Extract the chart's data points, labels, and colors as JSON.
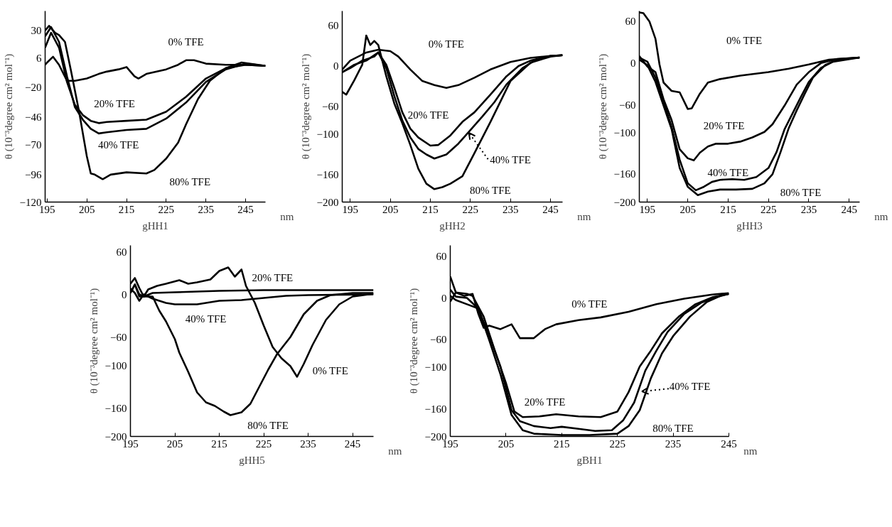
{
  "chart_data": [
    {
      "type": "line",
      "title": "gHH1",
      "xlabel": "nm",
      "ylabel": "θ (10⁻³degree cm² mol⁻¹)",
      "xlim": [
        194.5,
        250
      ],
      "ylim": [
        -120,
        47
      ],
      "xticks": [
        195,
        205,
        215,
        225,
        235,
        245
      ],
      "yticks": [
        -120,
        -96,
        -70,
        -46,
        -20,
        6,
        30
      ],
      "series": [
        {
          "name": "0% TFE",
          "color": "#000000",
          "x": [
            194.5,
            195,
            196.5,
            198,
            200,
            202,
            205,
            208,
            210,
            213,
            215,
            217,
            218,
            220,
            225,
            228,
            230,
            232,
            235,
            240,
            245,
            250
          ],
          "values": [
            0,
            2,
            7,
            0,
            -14,
            -14,
            -12,
            -8,
            -6,
            -4,
            -2,
            -10,
            -12,
            -8,
            -4,
            0,
            4,
            4,
            1,
            0,
            0,
            -1
          ]
        },
        {
          "name": "20% TFE",
          "color": "#000000",
          "x": [
            194.5,
            196,
            198,
            200,
            202,
            204,
            206,
            208,
            210,
            215,
            220,
            225,
            230,
            235,
            240,
            245,
            250
          ],
          "values": [
            15,
            28,
            15,
            -15,
            -35,
            -44,
            -49,
            -51,
            -50,
            -49,
            -48,
            -41,
            -28,
            -12,
            -3,
            0,
            -1
          ]
        },
        {
          "name": "40% TFE",
          "color": "#000000",
          "x": [
            194.5,
            196,
            198,
            200,
            202,
            204,
            206,
            208,
            210,
            215,
            220,
            225,
            230,
            235,
            240,
            245,
            250
          ],
          "values": [
            25,
            33,
            20,
            -10,
            -37,
            -48,
            -56,
            -60,
            -59,
            -57,
            -56,
            -47,
            -33,
            -15,
            -4,
            1,
            -1
          ]
        },
        {
          "name": "80% TFE",
          "color": "#000000",
          "x": [
            194.5,
            195.5,
            197,
            198,
            199.5,
            201,
            203,
            205,
            206,
            207,
            209,
            211,
            215,
            220,
            222,
            225,
            228,
            230,
            233,
            236,
            240,
            244,
            250
          ],
          "values": [
            30,
            34,
            28,
            26,
            20,
            -5,
            -40,
            -80,
            -95,
            -96,
            -100,
            -96,
            -94,
            -95,
            -92,
            -82,
            -68,
            -52,
            -30,
            -14,
            -3,
            2,
            -1
          ]
        }
      ]
    },
    {
      "type": "line",
      "title": "gHH2",
      "xlabel": "nm",
      "ylabel": "θ (10⁻³degree cm² mol⁻¹)",
      "xlim": [
        193,
        248
      ],
      "ylim": [
        -200,
        81
      ],
      "xticks": [
        195,
        205,
        215,
        225,
        235,
        245
      ],
      "yticks": [
        -200,
        -160,
        -100,
        -60,
        0,
        60
      ],
      "series": [
        {
          "name": "0% TFE",
          "color": "#000000",
          "x": [
            193,
            195,
            199,
            202,
            205,
            207,
            210,
            213,
            216,
            219,
            222,
            226,
            230,
            235,
            240,
            245,
            248
          ],
          "values": [
            -5,
            8,
            20,
            24,
            22,
            14,
            -5,
            -22,
            -28,
            -32,
            -28,
            -17,
            -5,
            6,
            12,
            15,
            16
          ]
        },
        {
          "name": "20% TFE",
          "color": "#000000",
          "x": [
            193,
            195,
            198,
            201,
            202,
            204,
            206,
            208,
            210,
            212,
            215,
            217,
            220,
            223,
            226,
            230,
            234,
            237,
            240,
            245,
            248
          ],
          "values": [
            -9,
            -3,
            8,
            14,
            20,
            2,
            -32,
            -68,
            -92,
            -105,
            -117,
            -116,
            -102,
            -82,
            -68,
            -42,
            -15,
            0,
            8,
            15,
            16
          ]
        },
        {
          "name": "40% TFE",
          "color": "#000000",
          "x": [
            193,
            196,
            199,
            202,
            204,
            206,
            208,
            210,
            212,
            214,
            216,
            219,
            222,
            225,
            228,
            231,
            234,
            238,
            241,
            245,
            248
          ],
          "values": [
            -9,
            2,
            8,
            20,
            -3,
            -44,
            -80,
            -105,
            -122,
            -130,
            -136,
            -130,
            -114,
            -94,
            -74,
            -53,
            -27,
            -3,
            8,
            15,
            16
          ]
        },
        {
          "name": "80% TFE",
          "color": "#000000",
          "x": [
            193,
            194,
            196,
            198,
            199,
            200,
            201,
            202,
            204,
            206,
            208,
            210,
            212,
            214,
            216,
            218,
            220,
            223,
            226,
            230,
            235,
            240,
            245,
            248
          ],
          "values": [
            -38,
            -42,
            -21,
            2,
            45,
            31,
            37,
            31,
            -15,
            -55,
            -84,
            -116,
            -151,
            -173,
            -181,
            -178,
            -173,
            -162,
            -128,
            -82,
            -22,
            5,
            14,
            16
          ]
        }
      ]
    },
    {
      "type": "line",
      "title": "gHH3",
      "xlabel": "nm",
      "ylabel": "θ (10⁻³degree cm² mol⁻¹)",
      "xlim": [
        193,
        247.6
      ],
      "ylim": [
        -200,
        75
      ],
      "xticks": [
        195,
        205,
        215,
        225,
        235,
        245
      ],
      "yticks": [
        -200,
        -160,
        -100,
        -60,
        0,
        60
      ],
      "series": [
        {
          "name": "0% TFE",
          "color": "#000000",
          "x": [
            193,
            194,
            195.5,
            197,
            198,
            199,
            201,
            203,
            205,
            206,
            208,
            210,
            213,
            218,
            225,
            230,
            235,
            240,
            247.6
          ],
          "values": [
            73,
            72,
            60,
            35,
            -2,
            -28,
            -40,
            -42,
            -66,
            -65,
            -44,
            -28,
            -23,
            -18,
            -13,
            -8,
            -2,
            5,
            8
          ]
        },
        {
          "name": "20% TFE",
          "color": "#000000",
          "x": [
            193,
            195,
            196,
            197,
            199,
            201,
            203,
            205,
            206.5,
            208,
            210,
            212,
            215,
            218,
            221,
            224,
            226,
            229,
            232,
            235,
            238,
            242,
            247.6
          ],
          "values": [
            10,
            -5,
            -9,
            -13,
            -52,
            -82,
            -124,
            -137,
            -140,
            -129,
            -120,
            -116,
            -116,
            -113,
            -107,
            -99,
            -88,
            -61,
            -31,
            -13,
            0,
            6,
            8
          ]
        },
        {
          "name": "40% TFE",
          "color": "#000000",
          "x": [
            193,
            195,
            197,
            199,
            201,
            203,
            205,
            207,
            209,
            211,
            213,
            216,
            219,
            222,
            225,
            227,
            229,
            231,
            233,
            235,
            238,
            241,
            247.6
          ],
          "values": [
            8,
            2,
            -21,
            -55,
            -92,
            -139,
            -173,
            -183,
            -178,
            -171,
            -168,
            -167,
            -168,
            -164,
            -151,
            -128,
            -95,
            -72,
            -49,
            -27,
            -7,
            2,
            8
          ]
        },
        {
          "name": "80% TFE",
          "color": "#000000",
          "x": [
            193,
            195,
            197,
            199,
            201,
            203,
            205,
            207.5,
            210,
            213,
            217,
            221,
            224,
            226,
            228,
            230,
            232,
            234,
            236,
            239,
            242,
            247.6
          ],
          "values": [
            5,
            -3,
            -27,
            -61,
            -95,
            -151,
            -178,
            -190,
            -185,
            -182,
            -182,
            -181,
            -173,
            -160,
            -128,
            -94,
            -68,
            -44,
            -21,
            -3,
            5,
            8
          ]
        }
      ]
    },
    {
      "type": "line",
      "title": "gHH5",
      "xlabel": "nm",
      "ylabel": "θ (10⁻³degree cm² mol⁻¹)",
      "xlim": [
        195,
        249.7
      ],
      "ylim": [
        -200,
        69
      ],
      "xticks": [
        195,
        205,
        215,
        225,
        235,
        245
      ],
      "yticks": [
        -200,
        -160,
        -100,
        -60,
        0,
        60
      ],
      "series": [
        {
          "name": "0% TFE",
          "color": "#000000",
          "x": [
            195,
            196,
            197,
            198,
            199,
            201,
            203,
            206,
            208,
            210,
            213,
            215,
            217,
            218.5,
            220,
            221,
            223,
            225,
            227,
            229,
            231,
            232.5,
            234,
            236,
            239,
            242,
            245,
            249.7
          ],
          "values": [
            15,
            23,
            9,
            -3,
            7,
            12,
            15,
            20,
            15,
            17,
            21,
            33,
            38,
            25,
            35,
            12,
            -12,
            -44,
            -74,
            -90,
            -101,
            -116,
            -98,
            -71,
            -36,
            -14,
            -3,
            1
          ]
        },
        {
          "name": "20% TFE",
          "color": "#000000",
          "x": [
            195,
            196,
            197,
            198,
            200,
            205,
            215,
            225,
            235,
            249.7
          ],
          "values": [
            2,
            14,
            -3,
            -3,
            2,
            3,
            5,
            6,
            6,
            6
          ]
        },
        {
          "name": "40% TFE",
          "color": "#000000",
          "x": [
            195,
            196,
            197,
            198,
            200,
            203,
            205,
            210,
            215,
            220,
            225,
            230,
            235,
            249.7
          ],
          "values": [
            8,
            2,
            -9,
            0,
            -6,
            -12,
            -14,
            -14,
            -9,
            -8,
            -5,
            -2,
            -1,
            0
          ]
        },
        {
          "name": "80% TFE",
          "color": "#000000",
          "x": [
            195,
            196,
            197,
            198,
            200,
            201.5,
            203,
            205,
            206,
            208,
            210,
            212,
            214,
            216,
            217.5,
            220,
            222,
            224,
            226,
            228,
            231,
            234,
            237,
            240,
            245,
            249.7
          ],
          "values": [
            2,
            14,
            0,
            -3,
            -3,
            -23,
            -38,
            -63,
            -82,
            -109,
            -138,
            -152,
            -157,
            -165,
            -170,
            -166,
            -154,
            -130,
            -106,
            -84,
            -60,
            -28,
            -9,
            -1,
            2,
            2
          ]
        }
      ]
    },
    {
      "type": "line",
      "title": "gBH1",
      "xlabel": "nm",
      "ylabel": "θ (10⁻³degree cm² mol⁻¹)",
      "xlim": [
        195,
        245
      ],
      "ylim": [
        -200,
        76
      ],
      "xticks": [
        195,
        205,
        215,
        225,
        235,
        245
      ],
      "yticks": [
        -200,
        -160,
        -100,
        -60,
        0,
        60
      ],
      "series": [
        {
          "name": "0% TFE",
          "color": "#000000",
          "x": [
            195,
            196,
            197.5,
            199,
            200,
            201,
            202,
            204,
            206,
            207.5,
            210,
            212,
            214,
            218,
            222,
            227,
            232,
            237,
            242,
            245
          ],
          "values": [
            -5,
            8,
            3,
            6,
            -22,
            -43,
            -40,
            -45,
            -38,
            -58,
            -58,
            -45,
            -38,
            -32,
            -28,
            -20,
            -9,
            -1,
            5,
            7
          ]
        },
        {
          "name": "20% TFE",
          "color": "#000000",
          "x": [
            195,
            196,
            198,
            199,
            201,
            203,
            205,
            206.5,
            208,
            211,
            214,
            218,
            222,
            225,
            227,
            229,
            231,
            233,
            236,
            239,
            242,
            245
          ],
          "values": [
            31,
            8,
            6,
            3,
            -27,
            -76,
            -123,
            -164,
            -172,
            -171,
            -168,
            -171,
            -172,
            -164,
            -136,
            -99,
            -76,
            -51,
            -27,
            -9,
            1,
            6
          ]
        },
        {
          "name": "40% TFE",
          "color": "#000000",
          "x": [
            195,
            196,
            198,
            200,
            202,
            204,
            206,
            207.5,
            210,
            213,
            215,
            218,
            221,
            224,
            226,
            228,
            230,
            232,
            234,
            237,
            240,
            243,
            245
          ],
          "values": [
            12,
            2,
            0,
            -15,
            -55,
            -99,
            -162,
            -178,
            -185,
            -188,
            -186,
            -189,
            -192,
            -191,
            -177,
            -151,
            -105,
            -76,
            -49,
            -23,
            -7,
            2,
            6
          ]
        },
        {
          "name": "80% TFE",
          "color": "#000000",
          "x": [
            195,
            196,
            198,
            200,
            202,
            204,
            206,
            208,
            210,
            215,
            220,
            225,
            227,
            229,
            231,
            233,
            235,
            238,
            241,
            244,
            245
          ],
          "values": [
            3,
            -3,
            -9,
            -15,
            -61,
            -110,
            -169,
            -191,
            -196,
            -198,
            -198,
            -196,
            -185,
            -162,
            -116,
            -80,
            -55,
            -27,
            -6,
            5,
            6
          ]
        }
      ]
    }
  ]
}
